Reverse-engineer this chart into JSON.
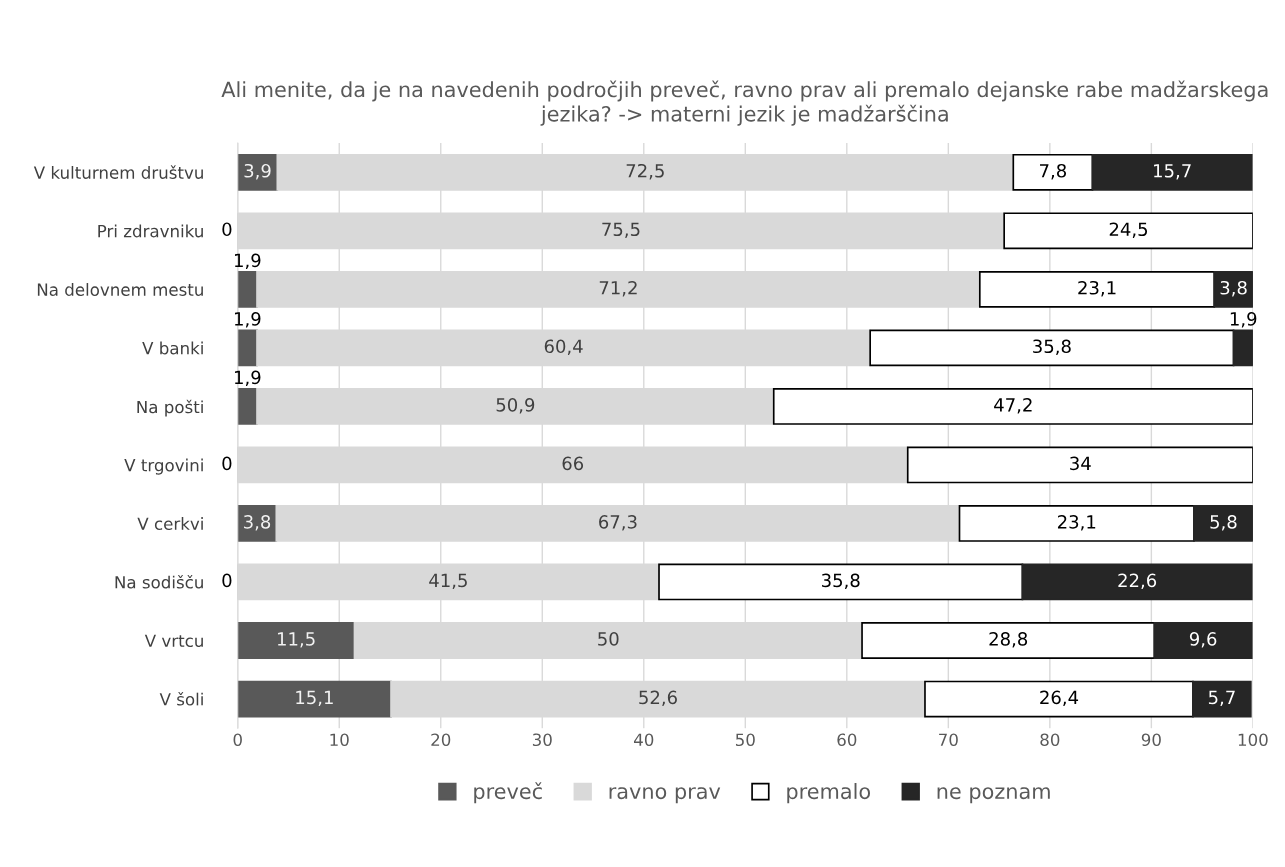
{
  "chart_data": {
    "type": "bar",
    "orientation": "horizontal",
    "stacked": true,
    "title": "Ali menite, da je na navedenih področjih preveč, ravno prav ali premalo dejanske rabe madžarskega jezika? -> materni jezik je madžarščina",
    "categories": [
      "V kulturnem društvu",
      "Pri zdravniku",
      "Na delovnem mestu",
      "V banki",
      "Na pošti",
      "V trgovini",
      "V cerkvi",
      "Na sodišču",
      "V vrtcu",
      "V šoli"
    ],
    "series": [
      {
        "name": "preveč",
        "color": "#595959",
        "values": [
          3.9,
          0,
          1.9,
          1.9,
          1.9,
          0,
          3.8,
          0,
          11.5,
          15.1
        ],
        "value_labels": [
          "3,9",
          "0",
          "1,9",
          "1,9",
          "1,9",
          "0",
          "3,8",
          "0",
          "11,5",
          "15,1"
        ]
      },
      {
        "name": "ravno prav",
        "color": "#d9d9d9",
        "values": [
          72.5,
          75.5,
          71.2,
          60.4,
          50.9,
          66,
          67.3,
          41.5,
          50,
          52.6
        ],
        "value_labels": [
          "72,5",
          "75,5",
          "71,2",
          "60,4",
          "50,9",
          "66",
          "67,3",
          "41,5",
          "50",
          "52,6"
        ]
      },
      {
        "name": "premalo",
        "color": "#ffffff",
        "values": [
          7.8,
          24.5,
          23.1,
          35.8,
          47.2,
          34,
          23.1,
          35.8,
          28.8,
          26.4
        ],
        "value_labels": [
          "7,8",
          "24,5",
          "23,1",
          "35,8",
          "47,2",
          "34",
          "23,1",
          "35,8",
          "28,8",
          "26,4"
        ]
      },
      {
        "name": "ne poznam",
        "color": "#262626",
        "values": [
          15.7,
          null,
          3.8,
          1.9,
          null,
          null,
          5.8,
          22.6,
          9.6,
          5.7
        ],
        "value_labels": [
          "15,7",
          null,
          "3,8",
          "1,9",
          null,
          null,
          "5,8",
          "22,6",
          "9,6",
          "5,7"
        ]
      }
    ],
    "xlim": [
      0,
      100
    ],
    "xticks": [
      0,
      10,
      20,
      30,
      40,
      50,
      60,
      70,
      80,
      90,
      100
    ],
    "grid": "x",
    "legend": "bottom"
  }
}
